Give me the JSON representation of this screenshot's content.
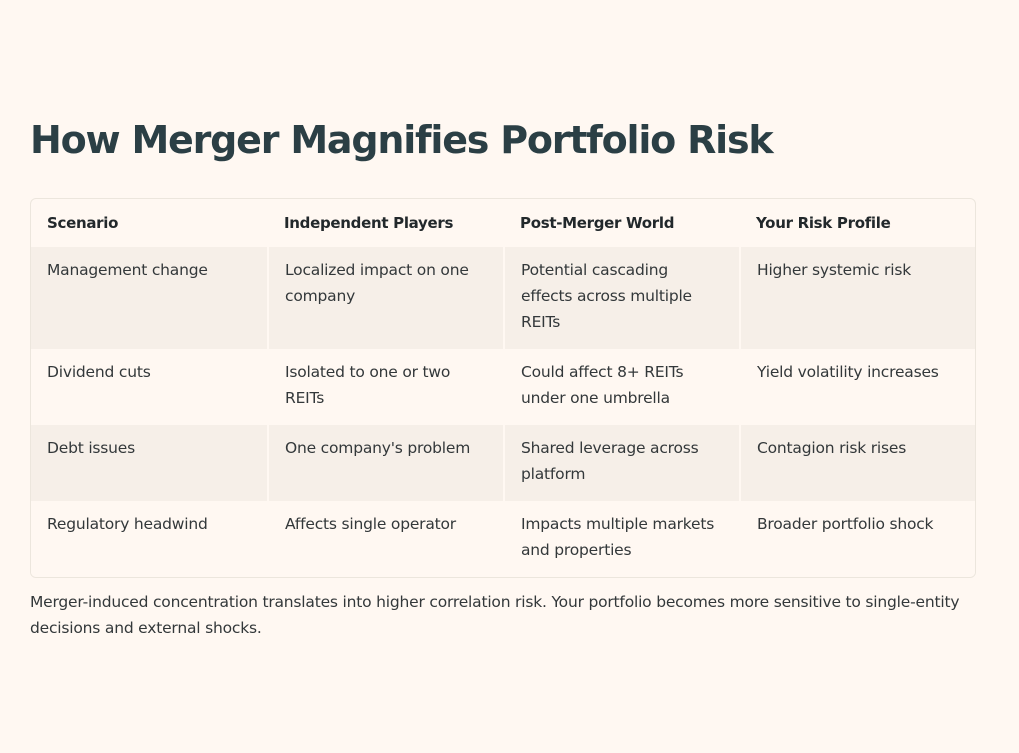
{
  "title": "How Merger Magnifies Portfolio Risk",
  "table": {
    "headers": [
      "Scenario",
      "Independent Players",
      "Post-Merger World",
      "Your Risk Profile"
    ],
    "rows": [
      [
        "Management change",
        "Localized impact on one company",
        "Potential cascading effects across multiple REITs",
        "Higher systemic risk"
      ],
      [
        "Dividend cuts",
        "Isolated to one or two REITs",
        "Could affect 8+ REITs under one umbrella",
        "Yield volatility increases"
      ],
      [
        "Debt issues",
        "One company's problem",
        "Shared leverage across platform",
        "Contagion risk rises"
      ],
      [
        "Regulatory headwind",
        "Affects single operator",
        "Impacts multiple markets and properties",
        "Broader portfolio shock"
      ]
    ]
  },
  "footnote": "Merger-induced concentration translates into higher correlation risk. Your portfolio becomes more sensitive to single-entity decisions and external shocks.",
  "colors": {
    "background": "#fff8f2",
    "row_alt": "#f6efe8",
    "title": "#2b3f45",
    "text": "#33383a"
  }
}
